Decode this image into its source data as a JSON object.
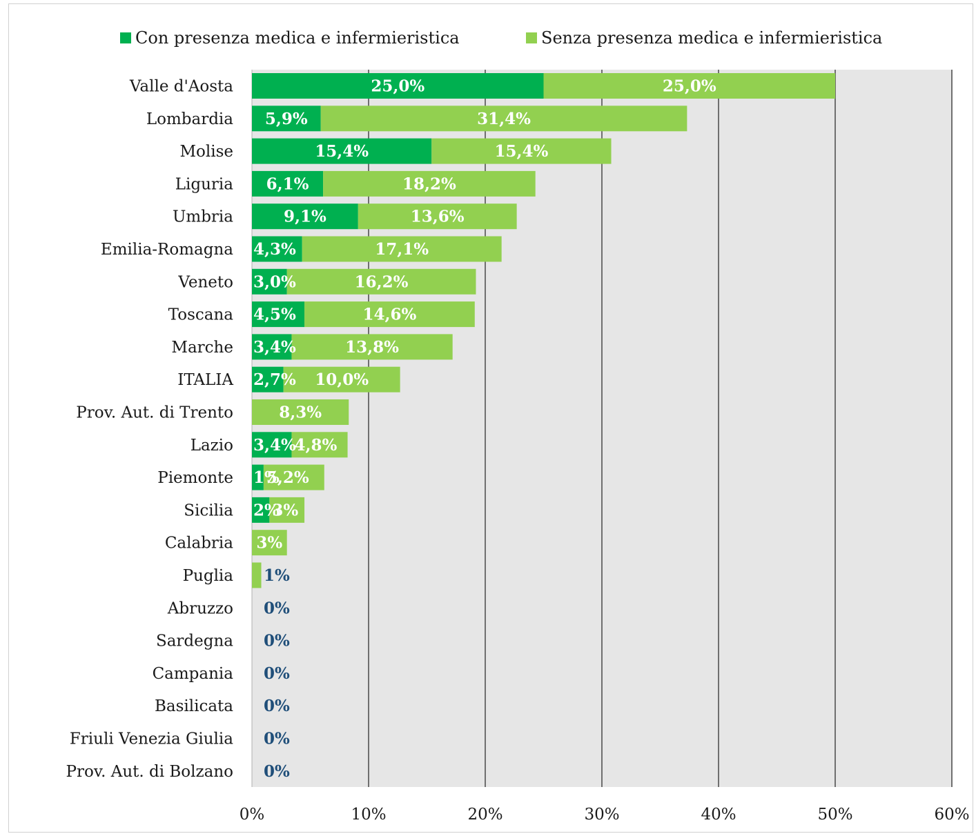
{
  "colors": {
    "with_staff": "#00b050",
    "without_staff": "#92d050",
    "plot_bg": "#e6e6e6",
    "grid": "#6f6f6f",
    "outside_label": "#1f4e79",
    "inside_label": "#ffffff"
  },
  "legend": {
    "items": [
      {
        "label": "Con presenza medica e infermieristica",
        "color": "#00b050"
      },
      {
        "label": "Senza presenza medica e infermieristica",
        "color": "#92d050"
      }
    ]
  },
  "chart_data": {
    "type": "bar",
    "orientation": "horizontal",
    "stacked": true,
    "title": "",
    "xlabel": "",
    "ylabel": "",
    "xlim": [
      0,
      60
    ],
    "x_ticks": [
      "0%",
      "10%",
      "20%",
      "30%",
      "40%",
      "50%",
      "60%"
    ],
    "grid": true,
    "legend_position": "top",
    "categories": [
      "Valle d'Aosta",
      "Lombardia",
      "Molise",
      "Liguria",
      "Umbria",
      "Emilia-Romagna",
      "Veneto",
      "Toscana",
      "Marche",
      "ITALIA",
      "Prov. Aut. di Trento",
      "Lazio",
      "Piemonte",
      "Sicilia",
      "Calabria",
      "Puglia",
      "Abruzzo",
      "Sardegna",
      "Campania",
      "Basilicata",
      "Friuli Venezia Giulia",
      "Prov. Aut. di Bolzano"
    ],
    "series": [
      {
        "name": "Con presenza medica e infermieristica",
        "color": "#00b050",
        "values": [
          25.0,
          5.9,
          15.4,
          6.1,
          9.1,
          4.3,
          3.0,
          4.5,
          3.4,
          2.7,
          0,
          3.4,
          1.0,
          1.5,
          0,
          0,
          0,
          0,
          0,
          0,
          0,
          0
        ],
        "labels": [
          "25,0%",
          "5,9%",
          "15,4%",
          "6,1%",
          "9,1%",
          "4,3%",
          "3,0%",
          "4,5%",
          "3,4%",
          "2,7%",
          "",
          "3,4%",
          "1%",
          "2%",
          "",
          "",
          "",
          "",
          "",
          "",
          "",
          ""
        ]
      },
      {
        "name": "Senza presenza medica e infermieristica",
        "color": "#92d050",
        "values": [
          25.0,
          31.4,
          15.4,
          18.2,
          13.6,
          17.1,
          16.2,
          14.6,
          13.8,
          10.0,
          8.3,
          4.8,
          5.2,
          3.0,
          3.0,
          0.8,
          0,
          0,
          0,
          0,
          0,
          0
        ],
        "labels": [
          "25,0%",
          "31,4%",
          "15,4%",
          "18,2%",
          "13,6%",
          "17,1%",
          "16,2%",
          "14,6%",
          "13,8%",
          "10,0%",
          "8,3%",
          "4,8%",
          "5,2%",
          "3%",
          "3%",
          "",
          "",
          "",
          "",
          "",
          "",
          ""
        ]
      }
    ],
    "totals_labels": [
      "",
      "",
      "",
      "",
      "",
      "",
      "",
      "",
      "",
      "",
      "",
      "",
      "",
      "",
      "",
      "1%",
      "0%",
      "0%",
      "0%",
      "0%",
      "0%",
      "0%"
    ]
  }
}
